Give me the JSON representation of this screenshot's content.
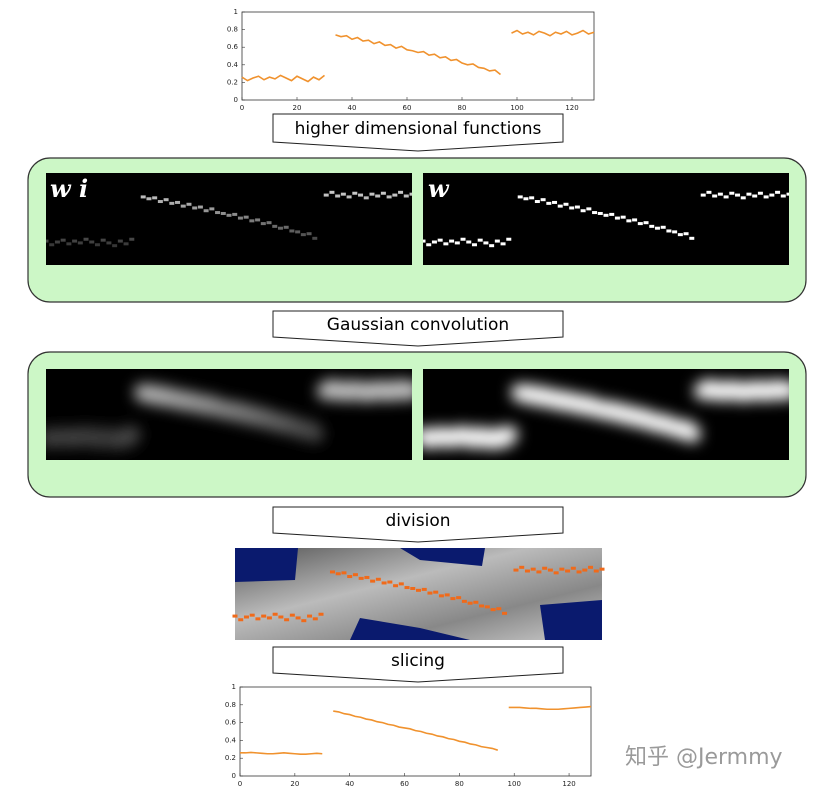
{
  "chart_data": [
    {
      "type": "line",
      "xlim": [
        0,
        128
      ],
      "ylim": [
        0,
        1
      ],
      "xticks": [
        0,
        20,
        40,
        60,
        80,
        100,
        120
      ],
      "yticks": [
        0,
        0.2,
        0.4,
        0.6,
        0.8,
        1
      ],
      "x": [
        0,
        2,
        4,
        6,
        8,
        10,
        12,
        14,
        16,
        18,
        20,
        22,
        24,
        26,
        28,
        30,
        32,
        34,
        36,
        38,
        40,
        42,
        44,
        46,
        48,
        50,
        52,
        54,
        56,
        58,
        60,
        62,
        64,
        66,
        68,
        70,
        72,
        74,
        76,
        78,
        80,
        82,
        84,
        86,
        88,
        90,
        92,
        94,
        96,
        98,
        100,
        102,
        104,
        106,
        108,
        110,
        112,
        114,
        116,
        118,
        120,
        122,
        124,
        126,
        128
      ],
      "series": [
        {
          "color": "#f0922e",
          "values": [
            0.26,
            0.22,
            0.25,
            0.27,
            0.23,
            0.26,
            0.24,
            0.28,
            0.25,
            0.22,
            0.27,
            0.24,
            0.21,
            0.26,
            0.23,
            0.28,
            null,
            0.74,
            0.72,
            0.73,
            0.69,
            0.71,
            0.67,
            0.68,
            0.64,
            0.66,
            0.62,
            0.63,
            0.59,
            0.61,
            0.57,
            0.56,
            0.54,
            0.55,
            0.51,
            0.52,
            0.48,
            0.49,
            0.45,
            0.46,
            0.42,
            0.4,
            0.41,
            0.37,
            0.36,
            0.33,
            0.34,
            0.29,
            null,
            0.76,
            0.79,
            0.75,
            0.77,
            0.74,
            0.78,
            0.76,
            0.73,
            0.77,
            0.75,
            0.78,
            0.74,
            0.76,
            0.79,
            0.75,
            0.77
          ]
        }
      ]
    },
    {
      "type": "line",
      "xlim": [
        0,
        128
      ],
      "ylim": [
        0,
        1
      ],
      "xticks": [
        0,
        20,
        40,
        60,
        80,
        100,
        120
      ],
      "yticks": [
        0,
        0.2,
        0.4,
        0.6,
        0.8,
        1
      ],
      "x": [
        0,
        2,
        4,
        6,
        8,
        10,
        12,
        14,
        16,
        18,
        20,
        22,
        24,
        26,
        28,
        30,
        32,
        34,
        36,
        38,
        40,
        42,
        44,
        46,
        48,
        50,
        52,
        54,
        56,
        58,
        60,
        62,
        64,
        66,
        68,
        70,
        72,
        74,
        76,
        78,
        80,
        82,
        84,
        86,
        88,
        90,
        92,
        94,
        96,
        98,
        100,
        102,
        104,
        106,
        108,
        110,
        112,
        114,
        116,
        118,
        120,
        122,
        124,
        126,
        128
      ],
      "series": [
        {
          "color": "#f0922e",
          "values": [
            0.26,
            0.26,
            0.265,
            0.26,
            0.255,
            0.25,
            0.25,
            0.255,
            0.26,
            0.255,
            0.25,
            0.245,
            0.245,
            0.25,
            0.255,
            0.25,
            null,
            0.73,
            0.72,
            0.7,
            0.69,
            0.67,
            0.66,
            0.64,
            0.63,
            0.61,
            0.6,
            0.58,
            0.57,
            0.55,
            0.54,
            0.53,
            0.51,
            0.5,
            0.48,
            0.47,
            0.45,
            0.44,
            0.42,
            0.41,
            0.39,
            0.38,
            0.36,
            0.35,
            0.33,
            0.32,
            0.31,
            0.29,
            null,
            0.77,
            0.77,
            0.77,
            0.765,
            0.76,
            0.76,
            0.755,
            0.75,
            0.75,
            0.75,
            0.755,
            0.76,
            0.765,
            0.77,
            0.775,
            0.78
          ]
        }
      ]
    }
  ],
  "steps": [
    "higher dimensional functions",
    "Gaussian convolution",
    "division",
    "slicing"
  ],
  "panel_labels": [
    "w i",
    "w"
  ],
  "watermark": "知乎 @Jermmy"
}
